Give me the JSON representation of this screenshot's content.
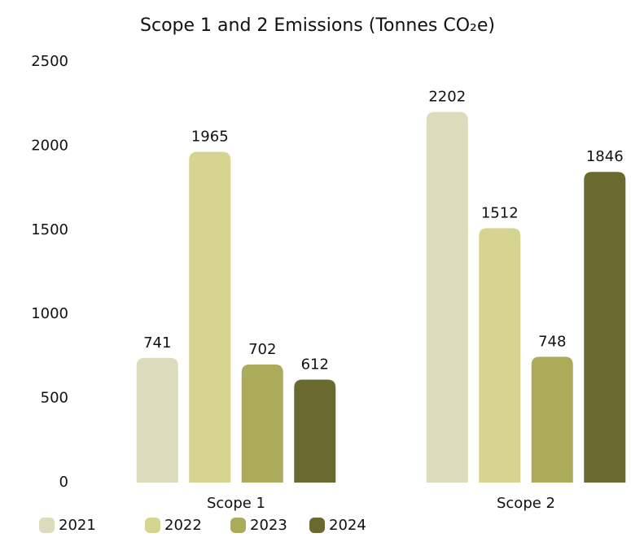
{
  "chart_data": {
    "type": "bar",
    "title": "Scope 1 and 2 Emissions (Tonnes CO₂e)",
    "categories": [
      "Scope 1",
      "Scope 2"
    ],
    "series": [
      {
        "name": "2021",
        "color": "#dcdbbb",
        "values": [
          741,
          2202
        ]
      },
      {
        "name": "2022",
        "color": "#d6d491",
        "values": [
          1965,
          1512
        ]
      },
      {
        "name": "2023",
        "color": "#abab5c",
        "values": [
          702,
          748
        ]
      },
      {
        "name": "2024",
        "color": "#6a6a2e",
        "values": [
          612,
          1846
        ]
      }
    ],
    "ylim": [
      0,
      2500
    ],
    "yticks": [
      0,
      500,
      1000,
      1500,
      2000,
      2500
    ],
    "grid": false,
    "legend": "bottom"
  }
}
